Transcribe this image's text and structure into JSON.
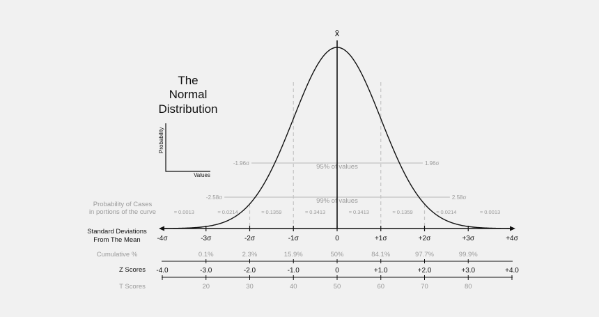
{
  "title_lines": [
    "The",
    "Normal",
    "Distribution"
  ],
  "mini_axes": {
    "ylabel": "Probability",
    "xlabel": "Values"
  },
  "mean_symbol": "x̄",
  "interval_markers": {
    "ci95": {
      "left": "-1.96σ",
      "right": "1.96σ",
      "label": "95% of values",
      "z": 1.96
    },
    "ci99": {
      "left": "-2.58σ",
      "right": "2.58σ",
      "label": "99% of values",
      "z": 2.58
    }
  },
  "probability_cases": {
    "label_lines": [
      "Probability of Cases",
      "in portions of the curve"
    ],
    "values": [
      "≈ 0.0013",
      "≈ 0.0214",
      "≈ 0.1359",
      "≈ 0.3413",
      "≈ 0.3413",
      "≈ 0.1359",
      "≈ 0.0214",
      "≈ 0.0013"
    ]
  },
  "std_dev": {
    "label_lines": [
      "Standard Deviations",
      "From The Mean"
    ],
    "ticks": [
      "-4σ",
      "-3σ",
      "-2σ",
      "-1σ",
      "0",
      "+1σ",
      "+2σ",
      "+3σ",
      "+4σ"
    ]
  },
  "cumulative": {
    "label": "Cumulative %",
    "values": [
      "0.1%",
      "2.3%",
      "15.9%",
      "50%",
      "84.1%",
      "97.7%",
      "99.9%"
    ]
  },
  "z_scores": {
    "label": "Z Scores",
    "values": [
      "-4.0",
      "-3.0",
      "-2.0",
      "-1.0",
      "0",
      "+1.0",
      "+2.0",
      "+3.0",
      "+4.0"
    ]
  },
  "t_scores": {
    "label": "T Scores",
    "values": [
      "20",
      "30",
      "40",
      "50",
      "60",
      "70",
      "80"
    ]
  },
  "colors": {
    "background": "#f1f1f1",
    "ink": "#111111",
    "muted": "#9a9a9a",
    "guide": "#c4c4c4"
  }
}
